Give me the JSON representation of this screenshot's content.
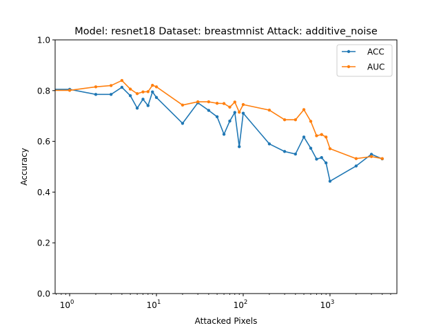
{
  "chart_data": {
    "type": "line",
    "title": "Model: resnet18 Dataset: breastmnist Attack: additive_noise",
    "xlabel": "Attacked Pixels",
    "ylabel": "Accuracy",
    "xscale": "log",
    "xlim": [
      0.68,
      5900
    ],
    "ylim": [
      0.0,
      1.0
    ],
    "yticks": [
      "0.0",
      "0.2",
      "0.4",
      "0.6",
      "0.8",
      "1.0"
    ],
    "xticks": [
      {
        "base": "10",
        "exp": "0",
        "value": 1
      },
      {
        "base": "10",
        "exp": "1",
        "value": 10
      },
      {
        "base": "10",
        "exp": "2",
        "value": 100
      },
      {
        "base": "10",
        "exp": "3",
        "value": 1000
      }
    ],
    "grid": false,
    "legend_position": "top-right",
    "x": [
      1,
      2,
      3,
      4,
      5,
      6,
      7,
      8,
      9,
      10,
      20,
      30,
      40,
      50,
      60,
      70,
      80,
      90,
      100,
      200,
      300,
      400,
      500,
      600,
      700,
      800,
      900,
      1000,
      2000,
      3000,
      4000
    ],
    "series": [
      {
        "name": "ACC",
        "color": "#1f77b4",
        "values": [
          0.805,
          0.785,
          0.785,
          0.813,
          0.78,
          0.731,
          0.766,
          0.741,
          0.795,
          0.773,
          0.671,
          0.752,
          0.722,
          0.697,
          0.628,
          0.68,
          0.714,
          0.579,
          0.711,
          0.59,
          0.56,
          0.55,
          0.617,
          0.573,
          0.53,
          0.536,
          0.515,
          0.443,
          0.503,
          0.549,
          0.531
        ]
      },
      {
        "name": "AUC",
        "color": "#ff7f0e",
        "values": [
          0.801,
          0.815,
          0.82,
          0.84,
          0.806,
          0.788,
          0.795,
          0.796,
          0.821,
          0.815,
          0.743,
          0.756,
          0.756,
          0.75,
          0.749,
          0.735,
          0.755,
          0.715,
          0.745,
          0.723,
          0.685,
          0.685,
          0.725,
          0.679,
          0.622,
          0.627,
          0.617,
          0.571,
          0.532,
          0.54,
          0.532
        ]
      }
    ],
    "first_point_extra_x": 0.68
  }
}
